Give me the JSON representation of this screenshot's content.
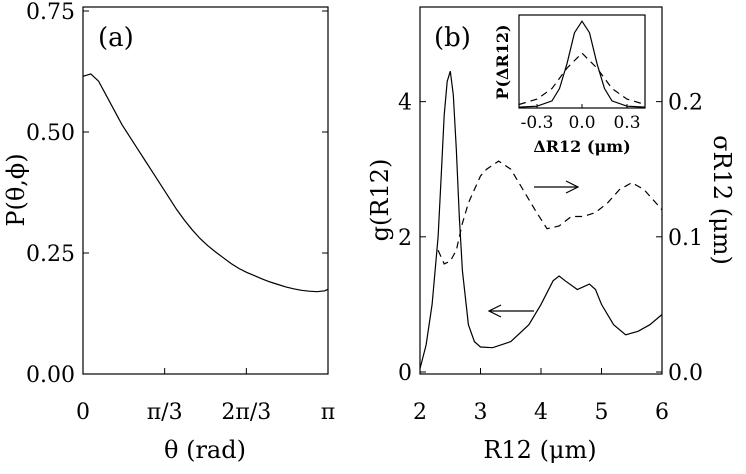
{
  "chart_data": [
    {
      "type": "line",
      "panel_label": "(a)",
      "xlabel": "θ (rad)",
      "ylabel": "P(θ,ϕ)",
      "xlim": [
        0,
        3.14159
      ],
      "ylim": [
        0.0,
        0.75
      ],
      "x_ticks": [
        {
          "value": 0,
          "label": "0"
        },
        {
          "value": 1.0472,
          "label": "π/3"
        },
        {
          "value": 2.0944,
          "label": "2π/3"
        },
        {
          "value": 3.14159,
          "label": "π"
        }
      ],
      "y_ticks": [
        {
          "value": 0.0,
          "label": "0.00"
        },
        {
          "value": 0.25,
          "label": "0.25"
        },
        {
          "value": 0.5,
          "label": "0.50"
        },
        {
          "value": 0.75,
          "label": "0.75"
        }
      ],
      "series": [
        {
          "style": "solid",
          "x": [
            0.0,
            0.1,
            0.2,
            0.3,
            0.4,
            0.5,
            0.6,
            0.7,
            0.8,
            0.9,
            1.0,
            1.1,
            1.2,
            1.3,
            1.4,
            1.5,
            1.6,
            1.7,
            1.8,
            1.9,
            2.0,
            2.1,
            2.2,
            2.3,
            2.4,
            2.5,
            2.6,
            2.7,
            2.8,
            2.9,
            3.0,
            3.1,
            3.14
          ],
          "y": [
            0.615,
            0.62,
            0.605,
            0.575,
            0.545,
            0.515,
            0.49,
            0.465,
            0.44,
            0.415,
            0.39,
            0.365,
            0.34,
            0.318,
            0.298,
            0.28,
            0.265,
            0.252,
            0.24,
            0.228,
            0.218,
            0.21,
            0.203,
            0.196,
            0.19,
            0.185,
            0.18,
            0.176,
            0.173,
            0.171,
            0.17,
            0.172,
            0.175
          ]
        }
      ]
    },
    {
      "type": "line",
      "panel_label": "(b)",
      "xlabel": "R12 (μm)",
      "ylabel": "g(R12)",
      "y2label": "σR12 (μm)",
      "xlim": [
        2,
        6
      ],
      "ylim": [
        0,
        5.4
      ],
      "y2lim": [
        0,
        0.27
      ],
      "x_ticks": [
        {
          "value": 2,
          "label": "2"
        },
        {
          "value": 3,
          "label": "3"
        },
        {
          "value": 4,
          "label": "4"
        },
        {
          "value": 5,
          "label": "5"
        },
        {
          "value": 6,
          "label": "6"
        }
      ],
      "y_ticks": [
        {
          "value": 0,
          "label": "0"
        },
        {
          "value": 2,
          "label": "2"
        },
        {
          "value": 4,
          "label": "4"
        }
      ],
      "y2_ticks": [
        {
          "value": 0.0,
          "label": "0.0"
        },
        {
          "value": 0.1,
          "label": "0.1"
        },
        {
          "value": 0.2,
          "label": "0.2"
        }
      ],
      "series": [
        {
          "axis": "left",
          "style": "solid",
          "x": [
            2.0,
            2.1,
            2.2,
            2.3,
            2.35,
            2.4,
            2.45,
            2.5,
            2.55,
            2.6,
            2.65,
            2.7,
            2.8,
            2.9,
            3.0,
            3.2,
            3.5,
            3.8,
            4.0,
            4.2,
            4.3,
            4.4,
            4.6,
            4.8,
            4.9,
            5.0,
            5.2,
            5.4,
            5.6,
            5.8,
            6.0
          ],
          "y": [
            0.05,
            0.4,
            1.0,
            2.0,
            2.9,
            3.8,
            4.3,
            4.45,
            4.1,
            3.3,
            2.3,
            1.5,
            0.7,
            0.45,
            0.37,
            0.36,
            0.45,
            0.7,
            1.0,
            1.35,
            1.42,
            1.35,
            1.22,
            1.3,
            1.22,
            1.0,
            0.7,
            0.55,
            0.6,
            0.7,
            0.85
          ]
        },
        {
          "axis": "right",
          "style": "dashed",
          "x": [
            2.3,
            2.4,
            2.5,
            2.6,
            2.7,
            2.8,
            2.9,
            3.0,
            3.1,
            3.2,
            3.3,
            3.5,
            3.7,
            3.9,
            4.1,
            4.3,
            4.5,
            4.7,
            4.9,
            5.1,
            5.3,
            5.5,
            5.7,
            5.9,
            6.0
          ],
          "y": [
            0.09,
            0.08,
            0.082,
            0.09,
            0.11,
            0.125,
            0.135,
            0.145,
            0.15,
            0.153,
            0.156,
            0.15,
            0.135,
            0.12,
            0.106,
            0.108,
            0.115,
            0.115,
            0.118,
            0.125,
            0.135,
            0.14,
            0.135,
            0.125,
            0.12
          ]
        }
      ],
      "annotations": [
        {
          "type": "arrow",
          "direction": "left",
          "target_axis": "left"
        },
        {
          "type": "arrow",
          "direction": "right",
          "target_axis": "right"
        }
      ],
      "inset": {
        "type": "line",
        "xlabel": "ΔR12 (μm)",
        "ylabel": "P(ΔR12)",
        "xlim": [
          -0.42,
          0.42
        ],
        "ylim": [
          0,
          1.05
        ],
        "x_ticks": [
          {
            "value": -0.3,
            "label": "-0.3"
          },
          {
            "value": 0.0,
            "label": "0.0"
          },
          {
            "value": 0.3,
            "label": "0.3"
          }
        ],
        "series": [
          {
            "style": "solid",
            "x": [
              -0.42,
              -0.3,
              -0.2,
              -0.15,
              -0.1,
              -0.05,
              0.0,
              0.05,
              0.1,
              0.15,
              0.2,
              0.3,
              0.42
            ],
            "y": [
              0.01,
              0.02,
              0.08,
              0.22,
              0.5,
              0.85,
              0.98,
              0.85,
              0.5,
              0.22,
              0.08,
              0.02,
              0.01
            ]
          },
          {
            "style": "dashed",
            "x": [
              -0.42,
              -0.3,
              -0.2,
              -0.1,
              0.0,
              0.1,
              0.2,
              0.3,
              0.42
            ],
            "y": [
              0.04,
              0.1,
              0.22,
              0.45,
              0.62,
              0.45,
              0.22,
              0.1,
              0.04
            ]
          }
        ]
      }
    }
  ]
}
